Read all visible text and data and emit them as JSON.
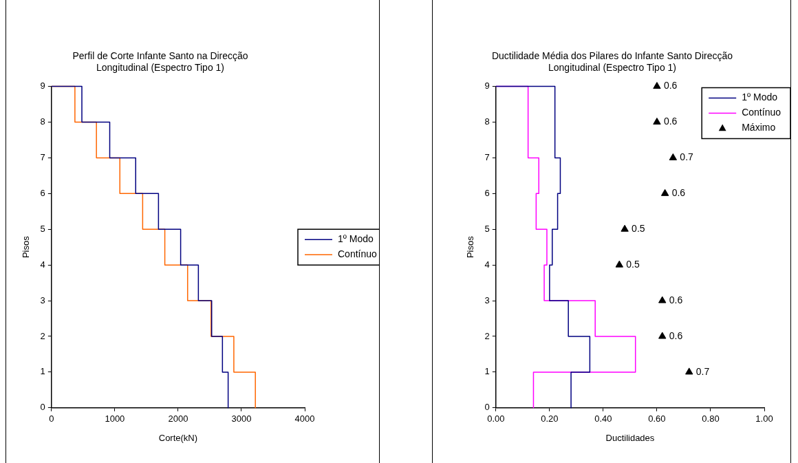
{
  "chart_data": [
    {
      "type": "line",
      "title": "Perfil de Corte Infante Santo na Direcção Longitudinal (Espectro Tipo 1)",
      "xlabel": "Corte(kN)",
      "ylabel": "Pisos",
      "xlim": [
        0,
        4000
      ],
      "xticks": [
        0,
        1000,
        2000,
        3000,
        4000
      ],
      "ylim": [
        0,
        9
      ],
      "yticks": [
        0,
        1,
        2,
        3,
        4,
        5,
        6,
        7,
        8,
        9
      ],
      "grid": false,
      "legend": "right",
      "marker": "none",
      "line_style": "solid",
      "series": [
        {
          "name": "1º Modo",
          "color": "#000080",
          "x": [
            0,
            480,
            480,
            920,
            920,
            1330,
            1330,
            1690,
            1690,
            2040,
            2040,
            2320,
            2320,
            2530,
            2530,
            2700,
            2700,
            2790,
            2790
          ],
          "values": [
            9,
            9,
            8,
            8,
            7,
            7,
            6,
            6,
            5,
            5,
            4,
            4,
            3,
            3,
            2,
            2,
            1,
            1,
            0
          ]
        },
        {
          "name": "Contínuo",
          "color": "#ff6600",
          "x": [
            0,
            370,
            370,
            710,
            710,
            1080,
            1080,
            1440,
            1440,
            1790,
            1790,
            2150,
            2150,
            2520,
            2520,
            2880,
            2880,
            3220,
            3220
          ],
          "values": [
            9,
            9,
            8,
            8,
            7,
            7,
            6,
            6,
            5,
            5,
            4,
            4,
            3,
            3,
            2,
            2,
            1,
            1,
            0
          ]
        }
      ]
    },
    {
      "type": "line",
      "title": "Ductilidade Média dos Pilares do Infante Santo Direcção Longitudinal (Espectro Tipo 1)",
      "xlabel": "Ductilidades",
      "ylabel": "Pisos",
      "xlim": [
        0,
        1
      ],
      "xticks": [
        {
          "value": 0,
          "label": "0.00"
        },
        {
          "value": 0.2,
          "label": "0.20"
        },
        {
          "value": 0.4,
          "label": "0.40"
        },
        {
          "value": 0.6,
          "label": "0.60"
        },
        {
          "value": 0.8,
          "label": "0.80"
        },
        {
          "value": 1,
          "label": "1.00"
        }
      ],
      "ylim": [
        0,
        9
      ],
      "yticks": [
        0,
        1,
        2,
        3,
        4,
        5,
        6,
        7,
        8,
        9
      ],
      "grid": false,
      "legend": "top right",
      "line_style": "solid",
      "series": [
        {
          "name": "1º Modo",
          "color": "#000080",
          "marker": "none",
          "x": [
            0,
            0.22,
            0.22,
            0.24,
            0.24,
            0.23,
            0.23,
            0.21,
            0.21,
            0.2,
            0.2,
            0.27,
            0.27,
            0.35,
            0.35,
            0.28,
            0.28
          ],
          "values": [
            9,
            9,
            7,
            7,
            6,
            6,
            5,
            5,
            4,
            4,
            3,
            3,
            2,
            2,
            1,
            1,
            0
          ]
        },
        {
          "name": "Contínuo",
          "color": "#ff00ff",
          "marker": "none",
          "x": [
            0,
            0.12,
            0.12,
            0.16,
            0.16,
            0.15,
            0.15,
            0.19,
            0.19,
            0.18,
            0.18,
            0.37,
            0.37,
            0.52,
            0.52,
            0.14,
            0.14
          ],
          "values": [
            9,
            9,
            7,
            7,
            6,
            6,
            5,
            5,
            4,
            4,
            3,
            3,
            2,
            2,
            1,
            1,
            0
          ]
        },
        {
          "name": "Máximo",
          "type": "scatter",
          "color": "#000000",
          "marker": "triangle",
          "x": [
            0.6,
            0.6,
            0.66,
            0.63,
            0.48,
            0.46,
            0.62,
            0.62,
            0.72
          ],
          "values": [
            9,
            8,
            7,
            6,
            5,
            4,
            3,
            2,
            1
          ]
        }
      ],
      "annotations": [
        {
          "text": "0.6",
          "x": 0.6,
          "y": 9
        },
        {
          "text": "0.6",
          "x": 0.6,
          "y": 8
        },
        {
          "text": "0.7",
          "x": 0.66,
          "y": 7
        },
        {
          "text": "0.6",
          "x": 0.63,
          "y": 6
        },
        {
          "text": "0.5",
          "x": 0.48,
          "y": 5
        },
        {
          "text": "0.5",
          "x": 0.46,
          "y": 4
        },
        {
          "text": "0.6",
          "x": 0.62,
          "y": 3
        },
        {
          "text": "0.6",
          "x": 0.62,
          "y": 2
        },
        {
          "text": "0.7",
          "x": 0.72,
          "y": 1
        }
      ]
    }
  ]
}
